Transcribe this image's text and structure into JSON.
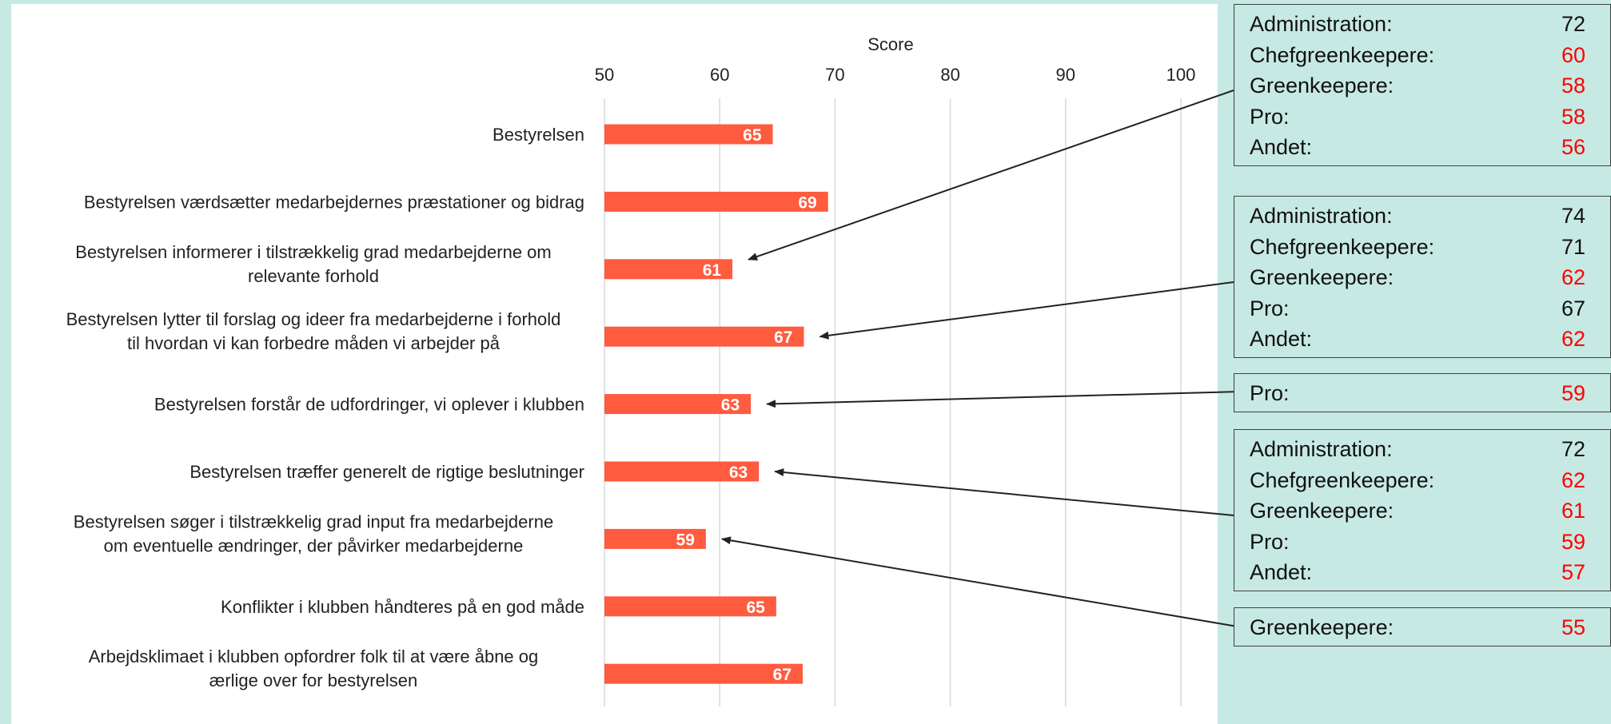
{
  "colors": {
    "bar": "#ff5b3f",
    "highlight": "#ff0000",
    "grid": "#d9d9d9",
    "panel_bg": "#c7e9e3"
  },
  "chart_data": {
    "type": "bar",
    "orientation": "horizontal",
    "xlabel": "Score",
    "xlim": [
      50,
      100
    ],
    "xticks": [
      50,
      60,
      70,
      80,
      90,
      100
    ],
    "grid": true,
    "categories": [
      "Bestyrelsen",
      "Bestyrelsen værdsætter medarbejdernes præstationer og bidrag",
      "Bestyrelsen informerer i tilstrækkelig grad medarbejderne om relevante forhold",
      "Bestyrelsen lytter til forslag og ideer fra medarbejderne i forhold til hvordan vi kan forbedre måden vi arbejder på",
      "Bestyrelsen forstår de udfordringer, vi oplever i klubben",
      "Bestyrelsen træffer generelt de rigtige beslutninger",
      "Bestyrelsen søger i tilstrækkelig grad input fra medarbejderne om eventuelle ændringer, der påvirker medarbejderne",
      "Konflikter i klubben håndteres på en god måde",
      "Arbejdsklimaet i klubben opfordrer folk til at være åbne og ærlige over for bestyrelsen"
    ],
    "category_lines": [
      [
        "Bestyrelsen"
      ],
      [
        "Bestyrelsen værdsætter medarbejdernes præstationer og bidrag"
      ],
      [
        "Bestyrelsen informerer i tilstrækkelig grad medarbejderne om",
        "relevante forhold"
      ],
      [
        "Bestyrelsen lytter til forslag og ideer fra medarbejderne i forhold",
        "til hvordan vi kan forbedre måden vi arbejder på"
      ],
      [
        "Bestyrelsen forstår de udfordringer, vi oplever i klubben"
      ],
      [
        "Bestyrelsen træffer generelt de rigtige beslutninger"
      ],
      [
        "Bestyrelsen søger i tilstrækkelig grad input fra medarbejderne",
        "om eventuelle ændringer, der påvirker medarbejderne"
      ],
      [
        "Konflikter i klubben håndteres på en god måde"
      ],
      [
        "Arbejdsklimaet i klubben opfordrer folk til at være åbne og",
        "ærlige over for bestyrelsen"
      ]
    ],
    "values": [
      64.6,
      69.4,
      61.1,
      67.3,
      62.7,
      63.4,
      58.8,
      64.9,
      67.2
    ],
    "data_labels": [
      "65",
      "69",
      "61",
      "67",
      "63",
      "63",
      "59",
      "65",
      "67"
    ]
  },
  "annotations": [
    {
      "target": 2,
      "rows": [
        {
          "label": "Administration:",
          "value": "72",
          "highlight": false
        },
        {
          "label": "Chefgreenkeepere:",
          "value": "60",
          "highlight": true
        },
        {
          "label": "Greenkeepere:",
          "value": "58",
          "highlight": true
        },
        {
          "label": "Pro:",
          "value": "58",
          "highlight": true
        },
        {
          "label": "Andet:",
          "value": "56",
          "highlight": true
        }
      ]
    },
    {
      "target": 3,
      "rows": [
        {
          "label": "Administration:",
          "value": "74",
          "highlight": false
        },
        {
          "label": "Chefgreenkeepere:",
          "value": "71",
          "highlight": false
        },
        {
          "label": "Greenkeepere:",
          "value": "62",
          "highlight": true
        },
        {
          "label": "Pro:",
          "value": "67",
          "highlight": false
        },
        {
          "label": "Andet:",
          "value": "62",
          "highlight": true
        }
      ]
    },
    {
      "target": 4,
      "rows": [
        {
          "label": "Pro:",
          "value": "59",
          "highlight": true
        }
      ]
    },
    {
      "target": 5,
      "rows": [
        {
          "label": "Administration:",
          "value": "72",
          "highlight": false
        },
        {
          "label": "Chefgreenkeepere:",
          "value": "62",
          "highlight": true
        },
        {
          "label": "Greenkeepere:",
          "value": "61",
          "highlight": true
        },
        {
          "label": "Pro:",
          "value": "59",
          "highlight": true
        },
        {
          "label": "Andet:",
          "value": "57",
          "highlight": true
        }
      ]
    },
    {
      "target": 6,
      "rows": [
        {
          "label": "Greenkeepere:",
          "value": "55",
          "highlight": true
        }
      ]
    }
  ]
}
